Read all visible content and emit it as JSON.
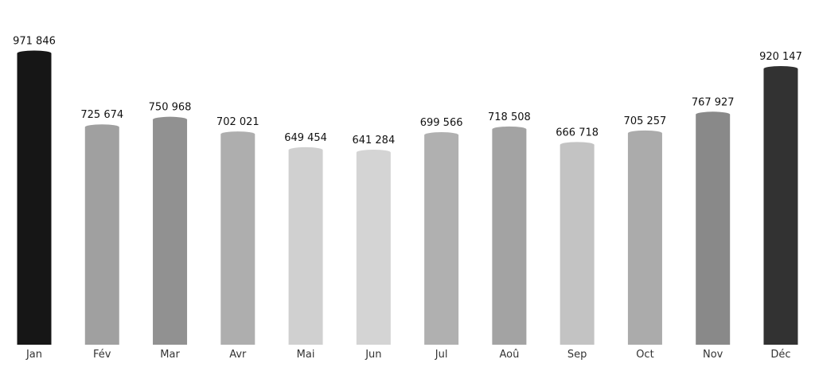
{
  "chart_data": {
    "type": "bar",
    "title": "",
    "xlabel": "",
    "ylabel": "",
    "categories": [
      "Jan",
      "Fév",
      "Mar",
      "Avr",
      "Mai",
      "Jun",
      "Jul",
      "Aoû",
      "Sep",
      "Oct",
      "Nov",
      "Déc"
    ],
    "values": [
      971846,
      725674,
      750968,
      702021,
      649454,
      641284,
      699566,
      718508,
      666718,
      705257,
      767927,
      920147
    ],
    "value_labels": [
      "971 846",
      "725 674",
      "750 968",
      "702 021",
      "649 454",
      "641 284",
      "699 566",
      "718 508",
      "666 718",
      "705 257",
      "767 927",
      "920 147"
    ],
    "colors": [
      "#161616",
      "#a0a0a0",
      "#919191",
      "#aeaeae",
      "#d0d0d0",
      "#d4d4d4",
      "#b0b0b0",
      "#a3a3a3",
      "#c3c3c3",
      "#ababab",
      "#898989",
      "#323232"
    ],
    "ylim": [
      0,
      971846
    ],
    "grid": false,
    "legend": "none"
  }
}
